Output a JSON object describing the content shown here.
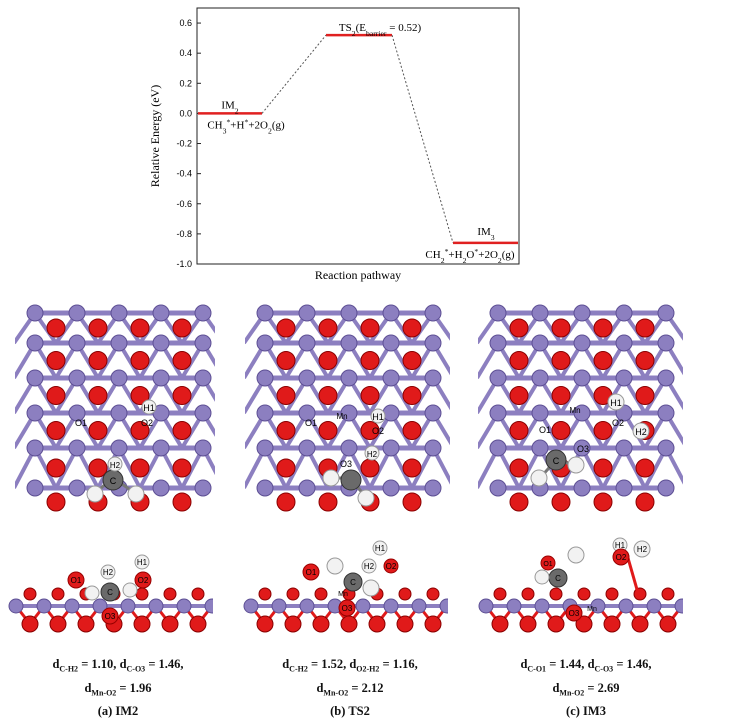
{
  "chart_data": {
    "type": "energy_profile",
    "ylabel": "Relative Energy (eV)",
    "xlabel": "Reaction pathway",
    "ylim": [
      -1.0,
      0.7
    ],
    "yticks": [
      "0.6",
      "0.4",
      "0.2",
      "0.0",
      "-0.2",
      "-0.4",
      "-0.6",
      "-0.8",
      "-1.0"
    ],
    "states": [
      {
        "name": "IM2",
        "energy": 0.0,
        "species": "CH3*+H*+2O2(g)"
      },
      {
        "name": "TS2(E_barrier = 0.52)",
        "energy": 0.52,
        "species": ""
      },
      {
        "name": "IM3",
        "energy": -0.86,
        "species": "CH2*+H2O*+2O2(g)"
      }
    ],
    "level_color": "#e02020",
    "connector_color": "#555555"
  },
  "structures": {
    "atom_colors": {
      "Mn": "#8c7fc0",
      "O": "#e01a1a",
      "H": "#f2f2f2",
      "C": "#6a6a6a"
    },
    "top_views": [
      {
        "label": "IM2",
        "atoms": [
          "H1",
          "O1",
          "O2",
          "H2",
          "C"
        ]
      },
      {
        "label": "TS2",
        "atoms": [
          "Mn",
          "H1",
          "O1",
          "O2",
          "O3",
          "H2"
        ]
      },
      {
        "label": "IM3",
        "atoms": [
          "Mn",
          "H1",
          "O1",
          "O2",
          "H2",
          "C",
          "O3"
        ]
      }
    ],
    "side_views": [
      {
        "label": "IM2",
        "atoms": [
          "H2",
          "H1",
          "O1",
          "O2",
          "C",
          "O3"
        ]
      },
      {
        "label": "TS2",
        "atoms": [
          "H1",
          "O1",
          "H2",
          "O2",
          "C",
          "Mn",
          "O3"
        ]
      },
      {
        "label": "IM3",
        "atoms": [
          "H1",
          "O1",
          "O2",
          "H2",
          "C",
          "Mn",
          "O3"
        ]
      }
    ]
  },
  "captions": [
    {
      "line1": "d_C-H2 = 1.10, d_C-O3 = 1.46,",
      "line2": "d_Mn-O2 = 1.96",
      "label": "(a) IM2"
    },
    {
      "line1": "d_C-H2 = 1.52, d_O2-H2 = 1.16,",
      "line2": "d_Mn-O2 = 2.12",
      "label": "(b) TS2"
    },
    {
      "line1": "d_C-O1 = 1.44, d_C-O3 = 1.46,",
      "line2": "d_Mn-O2 = 2.69",
      "label": "(c) IM3"
    }
  ]
}
